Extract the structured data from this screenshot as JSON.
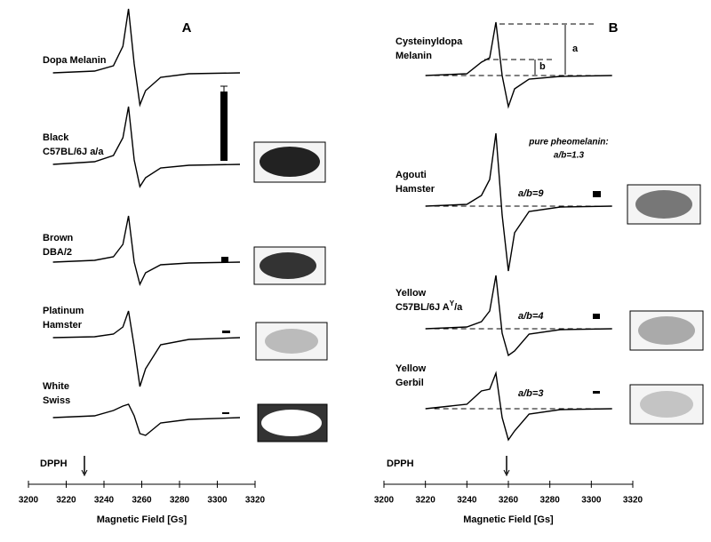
{
  "chart_data": [
    {
      "type": "line",
      "panel": "A",
      "xlabel": "Magnetic Field [Gs]",
      "marker": "DPPH",
      "xlim": [
        3200,
        3320
      ],
      "xticks": [
        3200,
        3220,
        3240,
        3260,
        3280,
        3300,
        3320
      ],
      "x": [
        3213,
        3235,
        3245,
        3250,
        3253,
        3256,
        3259,
        3262,
        3270,
        3285,
        3312
      ],
      "series": [
        {
          "label": [
            "Dopa Melanin"
          ],
          "color": "#000000",
          "values": [
            0,
            2,
            8,
            30,
            72,
            10,
            -36,
            -20,
            -5,
            -1,
            0
          ]
        },
        {
          "label": [
            "Black",
            "C57BL/6J a/a"
          ],
          "color": "#000000",
          "values": [
            0,
            3,
            10,
            30,
            65,
            5,
            -25,
            -15,
            -4,
            -1,
            0
          ]
        },
        {
          "label": [
            "Brown",
            "DBA/2"
          ],
          "color": "#000000",
          "values": [
            0,
            2,
            6,
            20,
            52,
            0,
            -25,
            -12,
            -3,
            -1,
            0
          ]
        },
        {
          "label": [
            "Platinum",
            "Hamster"
          ],
          "color": "#000000",
          "values": [
            0,
            1,
            4,
            12,
            30,
            -10,
            -55,
            -35,
            -8,
            -2,
            0
          ]
        },
        {
          "label": [
            "White",
            "Swiss"
          ],
          "color": "#000000",
          "values": [
            0,
            2,
            8,
            13,
            15,
            2,
            -18,
            -20,
            -6,
            -2,
            0
          ]
        }
      ]
    },
    {
      "type": "line",
      "panel": "B",
      "xlabel": "Magnetic Field [Gs]",
      "marker": "DPPH",
      "xlim": [
        3200,
        3320
      ],
      "xticks": [
        3200,
        3220,
        3240,
        3260,
        3280,
        3300,
        3320
      ],
      "x": [
        3220,
        3240,
        3247,
        3251,
        3254,
        3257,
        3260,
        3263,
        3270,
        3285,
        3310
      ],
      "note": [
        "pure pheomelanin:",
        "a/b=1.3"
      ],
      "amp_labels": [
        "a",
        "b"
      ],
      "series": [
        {
          "label": [
            "Cysteinyldopa",
            "Melanin"
          ],
          "color": "#000000",
          "values": [
            0,
            2,
            15,
            20,
            60,
            0,
            -35,
            -15,
            -4,
            -1,
            0
          ]
        },
        {
          "label": [
            "Agouti",
            "Hamster"
          ],
          "ratio": "a/b=9",
          "color": "#000000",
          "values": [
            0,
            2,
            12,
            30,
            82,
            -10,
            -73,
            -30,
            -6,
            -1,
            0
          ]
        },
        {
          "label": [
            "Yellow",
            "C57BL/6J A",
            "Y",
            "/a"
          ],
          "ratio": "a/b=4",
          "color": "#000000",
          "values": [
            0,
            2,
            8,
            20,
            60,
            -5,
            -30,
            -25,
            -6,
            -1,
            0
          ]
        },
        {
          "label": [
            "Yellow",
            "Gerbil"
          ],
          "ratio": "a/b=3",
          "color": "#000000",
          "values": [
            0,
            5,
            20,
            22,
            40,
            -10,
            -35,
            -25,
            -6,
            -1,
            0
          ]
        }
      ]
    }
  ]
}
